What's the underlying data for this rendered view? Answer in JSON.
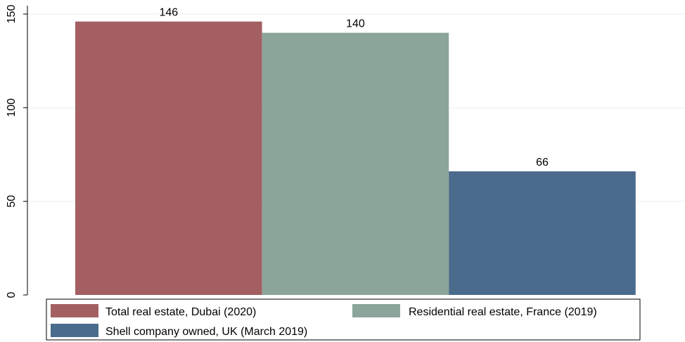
{
  "chart_data": {
    "type": "bar",
    "title": "",
    "xlabel": "",
    "ylabel": "",
    "ylim": [
      0,
      150
    ],
    "yticks": [
      0,
      50,
      100,
      150
    ],
    "grid": true,
    "legend_position": "bottom",
    "categories": [
      "Total real estate, Dubai (2020)",
      "Residential real estate, France (2019)",
      "Shell company owned, UK (March 2019)"
    ],
    "values": [
      146,
      140,
      66
    ],
    "value_labels": [
      "146",
      "140",
      "66"
    ],
    "colors": [
      "#a45f62",
      "#8ca59a",
      "#4a6b8c"
    ],
    "legend": [
      {
        "label": "Total real estate, Dubai (2020)",
        "color": "#a45f62"
      },
      {
        "label": "Residential real estate, France (2019)",
        "color": "#8ca59a"
      },
      {
        "label": "Shell company owned, UK (March 2019)",
        "color": "#4a6b8c"
      }
    ]
  }
}
